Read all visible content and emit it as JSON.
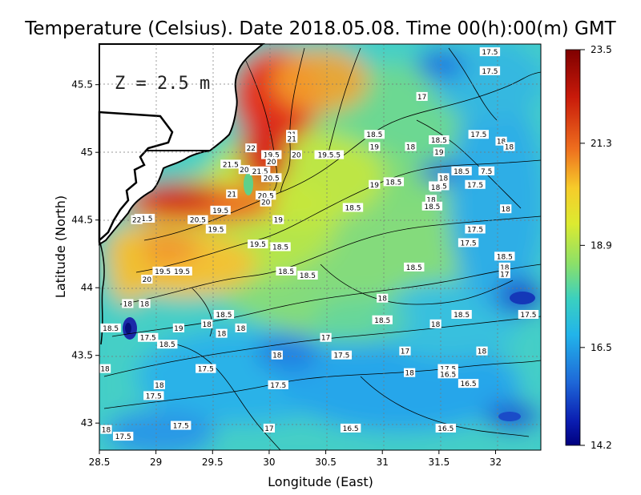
{
  "chart_data": {
    "type": "heatmap",
    "title": "Temperature (Celsius). Date 2018.05.08. Time 00(h):00(m)  GMT",
    "xlabel": "Longitude (East)",
    "ylabel": "Latitude (North)",
    "depth_label": "Z  =  2.5  m",
    "xlim": [
      28.5,
      32.4
    ],
    "ylim": [
      42.8,
      45.8
    ],
    "x_ticks": [
      "28.5",
      "29",
      "29.5",
      "30",
      "30.5",
      "31",
      "31.5",
      "32"
    ],
    "y_ticks": [
      "43",
      "43.5",
      "44",
      "44.5",
      "45",
      "45.5"
    ],
    "grid": true,
    "colorbar": {
      "min": 14.2,
      "max": 23.5,
      "tick_values": [
        23.5,
        21.3,
        18.9,
        16.5,
        14.2
      ],
      "tick_labels": [
        "23.5",
        "21.3",
        "18.9",
        "16.5",
        "14.2"
      ]
    },
    "contour_labels": [
      {
        "lon": 31.95,
        "lat": 45.74,
        "text": "17.5"
      },
      {
        "lon": 31.95,
        "lat": 45.6,
        "text": "17.5"
      },
      {
        "lon": 31.35,
        "lat": 45.41,
        "text": "17"
      },
      {
        "lon": 30.93,
        "lat": 45.13,
        "text": "18.5"
      },
      {
        "lon": 31.85,
        "lat": 45.13,
        "text": "17.5"
      },
      {
        "lon": 30.2,
        "lat": 45.13,
        "text": "21"
      },
      {
        "lon": 30.2,
        "lat": 45.1,
        "text": "21"
      },
      {
        "lon": 31.5,
        "lat": 45.09,
        "text": "18.5"
      },
      {
        "lon": 32.05,
        "lat": 45.08,
        "text": "18"
      },
      {
        "lon": 30.93,
        "lat": 45.04,
        "text": "19"
      },
      {
        "lon": 31.25,
        "lat": 45.04,
        "text": "18"
      },
      {
        "lon": 32.12,
        "lat": 45.04,
        "text": "18"
      },
      {
        "lon": 29.84,
        "lat": 45.03,
        "text": "22"
      },
      {
        "lon": 31.5,
        "lat": 45.0,
        "text": "19"
      },
      {
        "lon": 30.02,
        "lat": 44.98,
        "text": "19.5"
      },
      {
        "lon": 30.24,
        "lat": 44.98,
        "text": "20"
      },
      {
        "lon": 30.53,
        "lat": 44.98,
        "text": "19.5.5"
      },
      {
        "lon": 30.02,
        "lat": 44.93,
        "text": "20"
      },
      {
        "lon": 29.66,
        "lat": 44.91,
        "text": "21.5"
      },
      {
        "lon": 29.78,
        "lat": 44.87,
        "text": "20"
      },
      {
        "lon": 29.92,
        "lat": 44.86,
        "text": "21.5"
      },
      {
        "lon": 31.7,
        "lat": 44.86,
        "text": "18.5"
      },
      {
        "lon": 31.92,
        "lat": 44.86,
        "text": "7.5"
      },
      {
        "lon": 30.02,
        "lat": 44.81,
        "text": "20.5"
      },
      {
        "lon": 31.54,
        "lat": 44.81,
        "text": "18"
      },
      {
        "lon": 31.1,
        "lat": 44.78,
        "text": "18.5"
      },
      {
        "lon": 30.93,
        "lat": 44.76,
        "text": "19"
      },
      {
        "lon": 31.82,
        "lat": 44.76,
        "text": "17.5"
      },
      {
        "lon": 31.5,
        "lat": 44.75,
        "text": "18.5"
      },
      {
        "lon": 31.47,
        "lat": 44.74,
        "text": "18"
      },
      {
        "lon": 29.67,
        "lat": 44.69,
        "text": "21"
      },
      {
        "lon": 29.97,
        "lat": 44.68,
        "text": "20.5"
      },
      {
        "lon": 30.74,
        "lat": 44.59,
        "text": "18.5"
      },
      {
        "lon": 29.97,
        "lat": 44.63,
        "text": "20"
      },
      {
        "lon": 31.43,
        "lat": 44.65,
        "text": "18"
      },
      {
        "lon": 31.44,
        "lat": 44.6,
        "text": "18.5"
      },
      {
        "lon": 29.57,
        "lat": 44.57,
        "text": "19.5"
      },
      {
        "lon": 32.09,
        "lat": 44.58,
        "text": "18"
      },
      {
        "lon": 28.9,
        "lat": 44.51,
        "text": "21.5"
      },
      {
        "lon": 28.83,
        "lat": 44.5,
        "text": "22"
      },
      {
        "lon": 29.37,
        "lat": 44.5,
        "text": "20.5"
      },
      {
        "lon": 30.08,
        "lat": 44.5,
        "text": "19"
      },
      {
        "lon": 29.53,
        "lat": 44.43,
        "text": "19.5"
      },
      {
        "lon": 31.82,
        "lat": 44.43,
        "text": "17.5"
      },
      {
        "lon": 29.9,
        "lat": 44.32,
        "text": "19.5"
      },
      {
        "lon": 30.1,
        "lat": 44.3,
        "text": "18.5"
      },
      {
        "lon": 31.76,
        "lat": 44.33,
        "text": "17.5"
      },
      {
        "lon": 32.08,
        "lat": 44.23,
        "text": "18.5"
      },
      {
        "lon": 32.08,
        "lat": 44.15,
        "text": "18"
      },
      {
        "lon": 32.08,
        "lat": 44.1,
        "text": "17"
      },
      {
        "lon": 30.15,
        "lat": 44.12,
        "text": "18.5"
      },
      {
        "lon": 30.34,
        "lat": 44.09,
        "text": "18.5"
      },
      {
        "lon": 31.28,
        "lat": 44.15,
        "text": "18.5"
      },
      {
        "lon": 29.06,
        "lat": 44.12,
        "text": "19.5"
      },
      {
        "lon": 29.23,
        "lat": 44.12,
        "text": "19.5"
      },
      {
        "lon": 28.92,
        "lat": 44.06,
        "text": "20"
      },
      {
        "lon": 31.0,
        "lat": 43.92,
        "text": "18"
      },
      {
        "lon": 28.75,
        "lat": 43.88,
        "text": "18"
      },
      {
        "lon": 28.9,
        "lat": 43.88,
        "text": "18"
      },
      {
        "lon": 29.6,
        "lat": 43.8,
        "text": "18.5"
      },
      {
        "lon": 31.7,
        "lat": 43.8,
        "text": "18.5"
      },
      {
        "lon": 32.29,
        "lat": 43.8,
        "text": "17.5"
      },
      {
        "lon": 31.0,
        "lat": 43.76,
        "text": "18.5"
      },
      {
        "lon": 29.45,
        "lat": 43.73,
        "text": "18"
      },
      {
        "lon": 29.75,
        "lat": 43.7,
        "text": "18"
      },
      {
        "lon": 31.47,
        "lat": 43.73,
        "text": "18"
      },
      {
        "lon": 29.2,
        "lat": 43.7,
        "text": "19"
      },
      {
        "lon": 28.6,
        "lat": 43.7,
        "text": "18.5"
      },
      {
        "lon": 29.58,
        "lat": 43.66,
        "text": "18"
      },
      {
        "lon": 28.93,
        "lat": 43.63,
        "text": "17.5"
      },
      {
        "lon": 29.1,
        "lat": 43.58,
        "text": "18.5"
      },
      {
        "lon": 30.5,
        "lat": 43.63,
        "text": "17"
      },
      {
        "lon": 31.2,
        "lat": 43.53,
        "text": "17"
      },
      {
        "lon": 31.88,
        "lat": 43.53,
        "text": "18"
      },
      {
        "lon": 30.07,
        "lat": 43.5,
        "text": "18"
      },
      {
        "lon": 30.64,
        "lat": 43.5,
        "text": "17.5"
      },
      {
        "lon": 29.44,
        "lat": 43.4,
        "text": "17.5"
      },
      {
        "lon": 28.55,
        "lat": 43.4,
        "text": "18"
      },
      {
        "lon": 31.58,
        "lat": 43.4,
        "text": "17.5"
      },
      {
        "lon": 31.24,
        "lat": 43.37,
        "text": "18"
      },
      {
        "lon": 31.58,
        "lat": 43.36,
        "text": "16.5"
      },
      {
        "lon": 29.03,
        "lat": 43.28,
        "text": "18"
      },
      {
        "lon": 30.08,
        "lat": 43.28,
        "text": "17.5"
      },
      {
        "lon": 31.76,
        "lat": 43.29,
        "text": "16.5"
      },
      {
        "lon": 28.98,
        "lat": 43.2,
        "text": "17.5"
      },
      {
        "lon": 29.22,
        "lat": 42.98,
        "text": "17.5"
      },
      {
        "lon": 30.0,
        "lat": 42.96,
        "text": "17"
      },
      {
        "lon": 30.72,
        "lat": 42.96,
        "text": "16.5"
      },
      {
        "lon": 31.56,
        "lat": 42.96,
        "text": "16.5"
      },
      {
        "lon": 28.56,
        "lat": 42.95,
        "text": "18"
      },
      {
        "lon": 28.71,
        "lat": 42.9,
        "text": "17.5"
      }
    ]
  }
}
